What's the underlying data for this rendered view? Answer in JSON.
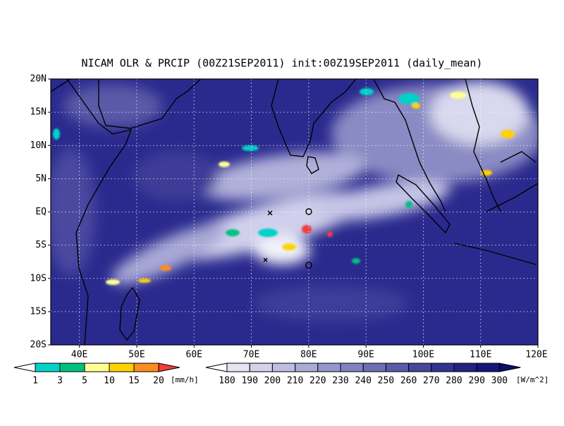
{
  "title": "NICAM OLR & PRCIP (00Z21SEP2011) init:00Z19SEP2011 (daily_mean)",
  "map": {
    "lat_labels": [
      "20N",
      "15N",
      "10N",
      "5N",
      "EQ",
      "5S",
      "10S",
      "15S",
      "20S"
    ],
    "lon_labels": [
      "40E",
      "50E",
      "60E",
      "70E",
      "80E",
      "90E",
      "100E",
      "110E",
      "120E"
    ]
  },
  "precip_legend": {
    "labels": [
      "1",
      "3",
      "5",
      "10",
      "15",
      "20"
    ],
    "unit": "[mm/h]",
    "colors": [
      "#ffffff",
      "#00d2c8",
      "#00c080",
      "#ffff96",
      "#ffd200",
      "#ff8c1e",
      "#f03c3c"
    ]
  },
  "olr_legend": {
    "labels": [
      "180",
      "190",
      "200",
      "210",
      "220",
      "230",
      "240",
      "250",
      "260",
      "270",
      "280",
      "290",
      "300"
    ],
    "unit": "[W/m^2]",
    "colors": [
      "#ffffff",
      "#e6e6f2",
      "#d2d2ea",
      "#bebee2",
      "#aaaad8",
      "#9696cc",
      "#8282c0",
      "#6e6eb4",
      "#5a5aa8",
      "#46469c",
      "#323290",
      "#222284",
      "#16167a",
      "#0c0c6e"
    ]
  }
}
